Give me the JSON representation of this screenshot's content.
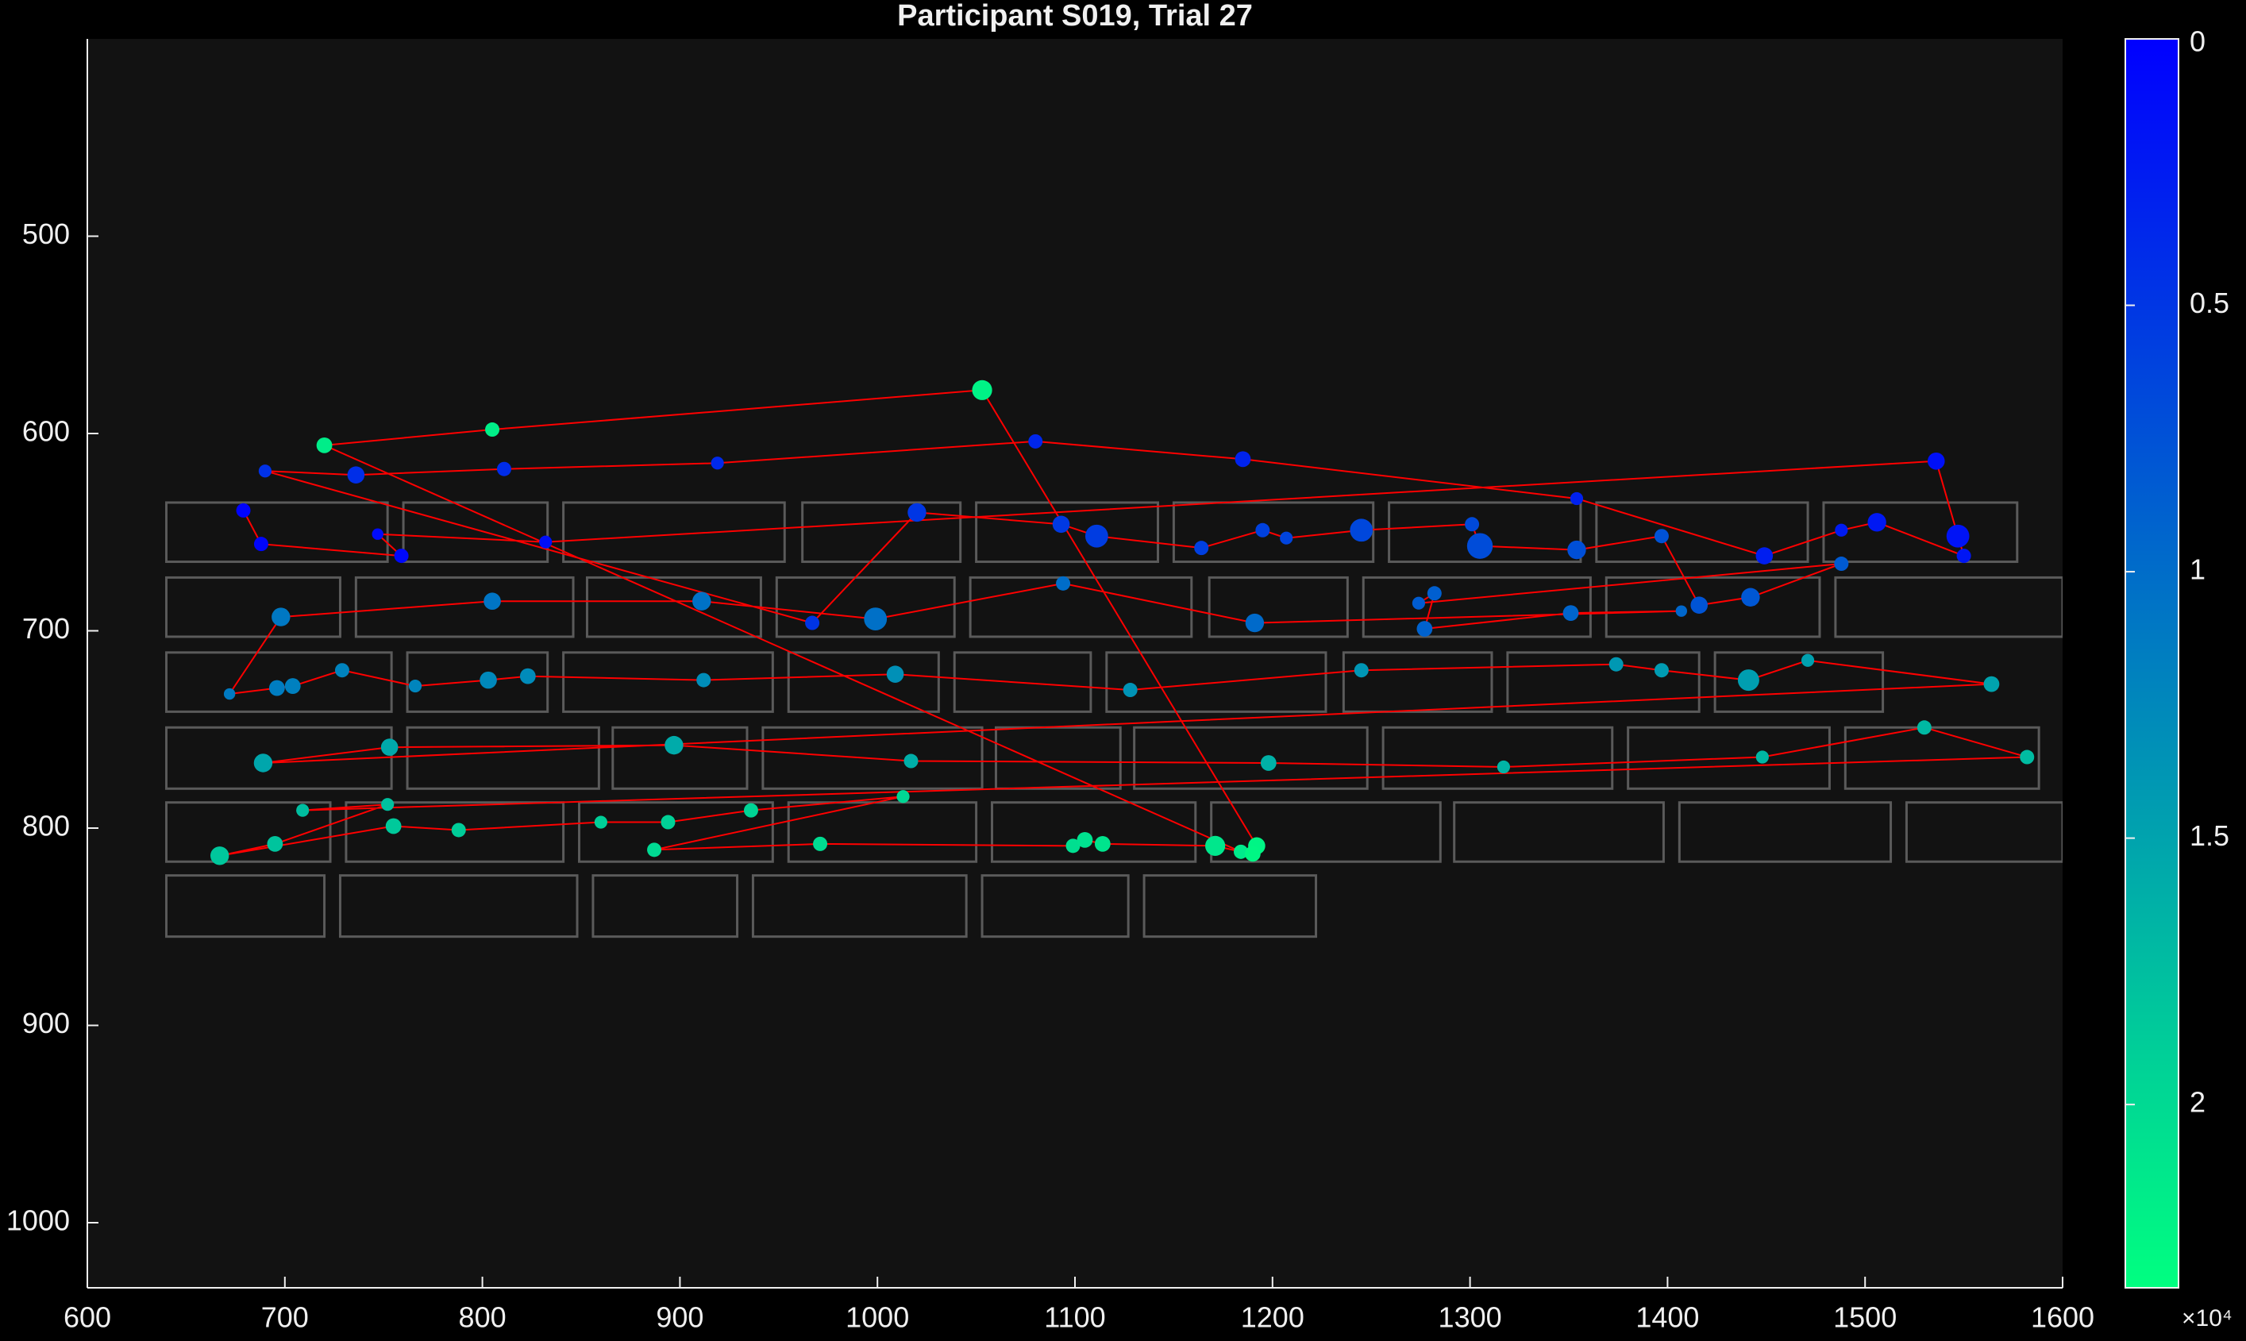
{
  "chart_data": {
    "type": "scatter",
    "title": "Participant S019, Trial 27",
    "xlim": [
      600,
      1600
    ],
    "xticks": [
      600,
      700,
      800,
      900,
      1000,
      1100,
      1200,
      1300,
      1400,
      1500,
      1600
    ],
    "ylim": [
      400,
      1033
    ],
    "y_direction": "reverse",
    "yticks": [
      500,
      600,
      700,
      800,
      900,
      1000
    ],
    "clim": [
      0,
      23440
    ],
    "cticks": [
      {
        "value": 0,
        "label": "0"
      },
      {
        "value": 5000,
        "label": "0.5"
      },
      {
        "value": 10000,
        "label": "1"
      },
      {
        "value": 15000,
        "label": "1.5"
      },
      {
        "value": 20000,
        "label": "2"
      }
    ],
    "colorbar_multiplier": "×10⁴",
    "colormap": [
      "#0000ff",
      "#00ff80"
    ],
    "line_color": "#ff0000",
    "box_color": "#5a5a5a",
    "x": [
      679,
      688,
      759,
      747,
      832,
      1536,
      1547,
      1550,
      1506,
      1488,
      1449,
      1354,
      1185,
      1080,
      919,
      811,
      736,
      690,
      967,
      1020,
      1093,
      1111,
      1164,
      1195,
      1207,
      1245,
      1301,
      1305,
      1354,
      1397,
      1416,
      1442,
      1488,
      1274,
      1282,
      1277,
      1351,
      1407,
      1191,
      1094,
      999,
      911,
      805,
      698,
      672,
      696,
      704,
      729,
      766,
      803,
      823,
      912,
      1009,
      1128,
      1245,
      1374,
      1397,
      1441,
      1471,
      1564,
      689,
      753,
      897,
      1017,
      1198,
      1317,
      1448,
      1530,
      1582,
      709,
      752,
      695,
      667,
      755,
      788,
      860,
      894,
      936,
      1013,
      887,
      971,
      1099,
      1105,
      1114,
      1171,
      1184,
      720,
      805,
      1053,
      1192,
      1190
    ],
    "y": [
      639,
      656,
      662,
      651,
      655,
      614,
      652,
      662,
      645,
      649,
      662,
      633,
      613,
      604,
      615,
      618,
      621,
      619,
      696,
      640,
      646,
      652,
      658,
      649,
      653,
      649,
      646,
      657,
      659,
      652,
      687,
      683,
      666,
      686,
      681,
      699,
      691,
      690,
      696,
      676,
      694,
      685,
      685,
      693,
      732,
      729,
      728,
      720,
      728,
      725,
      723,
      725,
      722,
      730,
      720,
      717,
      720,
      725,
      715,
      727,
      767,
      759,
      758,
      766,
      767,
      769,
      764,
      749,
      764,
      791,
      788,
      808,
      814,
      799,
      801,
      797,
      797,
      791,
      784,
      811,
      808,
      809,
      806,
      808,
      809,
      812,
      606,
      598,
      578,
      809,
      813
    ],
    "sizes": [
      10,
      10,
      10,
      8,
      9,
      12,
      16,
      10,
      13,
      9,
      12,
      9,
      11,
      10,
      9,
      10,
      12,
      9,
      10,
      13,
      12,
      16,
      10,
      10,
      9,
      16,
      10,
      18,
      13,
      10,
      12,
      13,
      10,
      9,
      10,
      11,
      11,
      8,
      13,
      10,
      16,
      13,
      12,
      13,
      8,
      11,
      11,
      10,
      9,
      12,
      11,
      10,
      12,
      10,
      10,
      10,
      10,
      15,
      9,
      11,
      13,
      12,
      13,
      10,
      11,
      9,
      9,
      10,
      10,
      9,
      9,
      11,
      13,
      11,
      10,
      9,
      10,
      10,
      9,
      10,
      10,
      10,
      11,
      11,
      14,
      10,
      11,
      10,
      14,
      12,
      11
    ],
    "times": [
      250,
      500,
      750,
      1000,
      1250,
      1500,
      1750,
      2000,
      2250,
      2500,
      2750,
      3000,
      3250,
      3500,
      3750,
      4000,
      4250,
      4500,
      4750,
      5000,
      5250,
      5500,
      5750,
      6000,
      6250,
      6500,
      6750,
      7000,
      7250,
      7500,
      7750,
      8000,
      8250,
      8500,
      8750,
      9000,
      9250,
      9500,
      9750,
      10000,
      10250,
      10500,
      10750,
      11000,
      11250,
      11500,
      11750,
      12000,
      12250,
      12500,
      12750,
      13000,
      13250,
      13500,
      13750,
      14000,
      14250,
      14500,
      14750,
      15000,
      15250,
      15500,
      15750,
      16000,
      16250,
      16500,
      16750,
      17000,
      17250,
      17500,
      17750,
      18000,
      18250,
      18500,
      18750,
      19000,
      19250,
      19500,
      19750,
      20000,
      20250,
      20500,
      20750,
      21000,
      21250,
      21500,
      21750,
      22000,
      22250,
      22500,
      22750
    ],
    "aoi_boxes": [
      [
        640,
        635,
        752,
        665
      ],
      [
        760,
        635,
        833,
        665
      ],
      [
        841,
        635,
        953,
        665
      ],
      [
        962,
        635,
        1042,
        665
      ],
      [
        1050,
        635,
        1142,
        665
      ],
      [
        1150,
        635,
        1251,
        665
      ],
      [
        1259,
        635,
        1356,
        665
      ],
      [
        1364,
        635,
        1471,
        665
      ],
      [
        1479,
        635,
        1577,
        665
      ],
      [
        640,
        673,
        728,
        703
      ],
      [
        736,
        673,
        846,
        703
      ],
      [
        853,
        673,
        941,
        703
      ],
      [
        949,
        673,
        1039,
        703
      ],
      [
        1047,
        673,
        1159,
        703
      ],
      [
        1168,
        673,
        1238,
        703
      ],
      [
        1246,
        673,
        1361,
        703
      ],
      [
        1369,
        673,
        1477,
        703
      ],
      [
        1485,
        673,
        1600,
        703
      ],
      [
        640,
        711,
        754,
        741
      ],
      [
        762,
        711,
        833,
        741
      ],
      [
        841,
        711,
        947,
        741
      ],
      [
        955,
        711,
        1031,
        741
      ],
      [
        1039,
        711,
        1108,
        741
      ],
      [
        1116,
        711,
        1227,
        741
      ],
      [
        1236,
        711,
        1311,
        741
      ],
      [
        1319,
        711,
        1416,
        741
      ],
      [
        1424,
        711,
        1509,
        741
      ],
      [
        640,
        749,
        754,
        780
      ],
      [
        762,
        749,
        859,
        780
      ],
      [
        866,
        749,
        934,
        780
      ],
      [
        942,
        749,
        1053,
        780
      ],
      [
        1060,
        749,
        1123,
        780
      ],
      [
        1130,
        749,
        1248,
        780
      ],
      [
        1256,
        749,
        1372,
        780
      ],
      [
        1380,
        749,
        1482,
        780
      ],
      [
        1490,
        749,
        1588,
        780
      ],
      [
        640,
        787,
        723,
        817
      ],
      [
        731,
        787,
        841,
        817
      ],
      [
        849,
        787,
        947,
        817
      ],
      [
        955,
        787,
        1050,
        817
      ],
      [
        1058,
        787,
        1161,
        817
      ],
      [
        1169,
        787,
        1285,
        817
      ],
      [
        1292,
        787,
        1398,
        817
      ],
      [
        1406,
        787,
        1513,
        817
      ],
      [
        1521,
        787,
        1600,
        817
      ],
      [
        640,
        824,
        720,
        855
      ],
      [
        728,
        824,
        848,
        855
      ],
      [
        856,
        824,
        929,
        855
      ],
      [
        937,
        824,
        1045,
        855
      ],
      [
        1053,
        824,
        1127,
        855
      ],
      [
        1135,
        824,
        1222,
        855
      ]
    ]
  }
}
